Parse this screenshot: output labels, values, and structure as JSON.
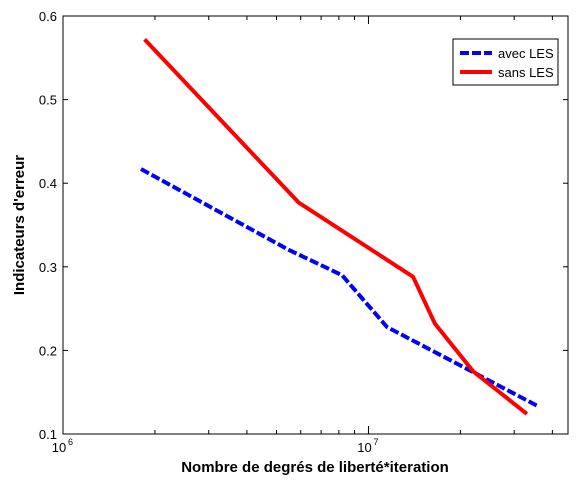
{
  "chart_data": {
    "type": "line",
    "title": "",
    "xlabel": "Nombre de degrés de liberté*iteration",
    "ylabel": "Indicateurs d'erreur",
    "x_scale": "log",
    "xlim": [
      1000000,
      45000000
    ],
    "ylim": [
      0.1,
      0.6
    ],
    "x_ticks": [
      {
        "value": 1000000,
        "base": "10",
        "exp": "6"
      },
      {
        "value": 10000000,
        "base": "10",
        "exp": "7"
      }
    ],
    "y_ticks": [
      {
        "value": 0.1,
        "label": "0.1"
      },
      {
        "value": 0.2,
        "label": "0.2"
      },
      {
        "value": 0.3,
        "label": "0.3"
      },
      {
        "value": 0.4,
        "label": "0.4"
      },
      {
        "value": 0.5,
        "label": "0.5"
      },
      {
        "value": 0.6,
        "label": "0.6"
      }
    ],
    "grid": false,
    "legend_position": "top-right",
    "series": [
      {
        "name": "avec LES",
        "color": "#0000ff",
        "style": "dashed",
        "points": [
          [
            1800000,
            0.417
          ],
          [
            5500000,
            0.32
          ],
          [
            8200000,
            0.29
          ],
          [
            11500000,
            0.228
          ],
          [
            36000000,
            0.133
          ]
        ]
      },
      {
        "name": "sans LES",
        "color": "#ff0000",
        "style": "solid",
        "points": [
          [
            1850000,
            0.572
          ],
          [
            5900000,
            0.377
          ],
          [
            14000000,
            0.288
          ],
          [
            16500000,
            0.232
          ],
          [
            22000000,
            0.175
          ],
          [
            33000000,
            0.124
          ]
        ]
      }
    ]
  }
}
